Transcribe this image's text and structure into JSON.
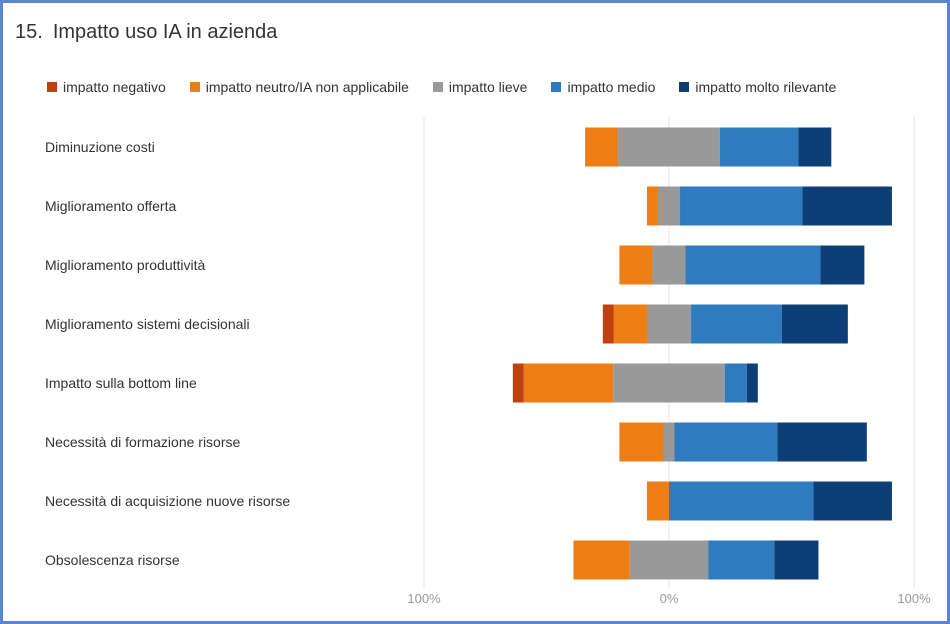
{
  "title": {
    "number": "15.",
    "text": "Impatto uso IA in azienda"
  },
  "chart_data": {
    "type": "bar",
    "orientation": "horizontal-diverging-stacked",
    "title": "Impatto uso IA in azienda",
    "xlim": [
      -100,
      100
    ],
    "ticks": [
      {
        "value": -100,
        "label": "100%"
      },
      {
        "value": 0,
        "label": "0%"
      },
      {
        "value": 100,
        "label": "100%"
      }
    ],
    "legend_position": "top",
    "colors": [
      "#c0400f",
      "#ed7d15",
      "#999999",
      "#2e7bbf",
      "#0d3f76"
    ],
    "categories": [
      "Diminuzione costi",
      "Miglioramento offerta",
      "Miglioramento produttività",
      "Miglioramento sistemi decisionali",
      "Impatto sulla bottom line",
      "Necessità di formazione risorse",
      "Necessità di acquisizione nuove risorse",
      "Obsolescenza risorse"
    ],
    "series": [
      {
        "name": "impatto negativo",
        "values": [
          0,
          0,
          0,
          4.5,
          4.5,
          0,
          0,
          0
        ]
      },
      {
        "name": "impatto neutro/IA non applicabile",
        "values": [
          13.5,
          4.5,
          13.5,
          13.5,
          36.5,
          18,
          9,
          23
        ]
      },
      {
        "name": "impatto lieve",
        "values": [
          41.5,
          9,
          13.5,
          18,
          45.5,
          4.5,
          0,
          32
        ]
      },
      {
        "name": "impatto medio",
        "values": [
          32,
          50,
          55,
          37,
          9,
          42,
          59,
          27
        ]
      },
      {
        "name": "impatto molto rilevante",
        "values": [
          13.5,
          36.5,
          18,
          27,
          4.5,
          36.5,
          32,
          18
        ]
      }
    ]
  }
}
